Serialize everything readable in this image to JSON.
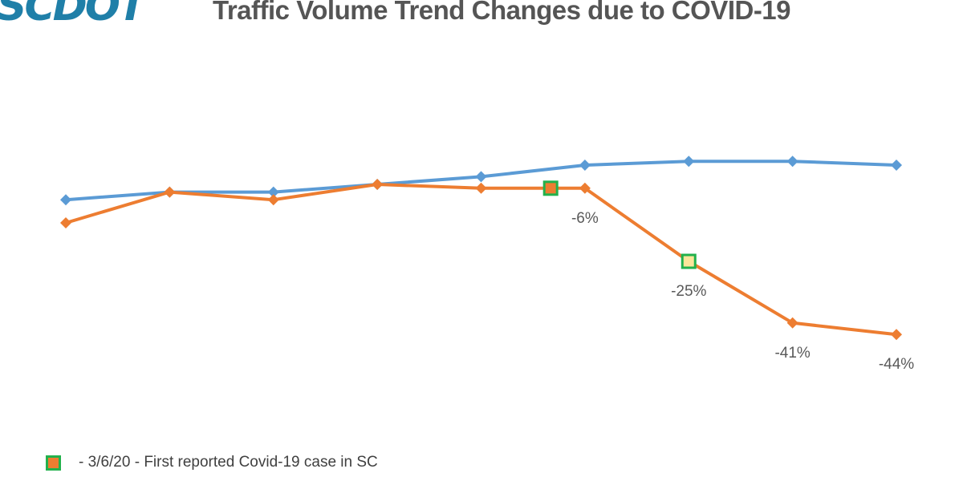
{
  "logo": "SCDOT",
  "chart_data": {
    "type": "line",
    "title": "Traffic Volume Trend Changes due to COVID-19",
    "ylim": [
      -55,
      5
    ],
    "grid": false,
    "x": [
      1,
      2,
      3,
      4,
      5,
      6,
      7,
      8,
      9
    ],
    "series": [
      {
        "color": "#5b9bd5",
        "values": [
          -9,
          -7,
          -7,
          -5,
          -3,
          0,
          1,
          1,
          0
        ]
      },
      {
        "color": "#ed7d31",
        "values": [
          -15,
          -7,
          -9,
          -5,
          -6,
          -6,
          -25,
          -41,
          -44
        ]
      }
    ],
    "data_labels": [
      {
        "index": 5,
        "text": "-6%"
      },
      {
        "index": 6,
        "text": "-25%"
      },
      {
        "index": 7,
        "text": "-41%"
      },
      {
        "index": 8,
        "text": "-44%"
      }
    ],
    "event_markers": [
      {
        "x": 5.67,
        "value": -6,
        "fill": "#ed7d31",
        "border": "#22b14c"
      },
      {
        "x": 7,
        "value": -25,
        "fill": "#fbe59a",
        "border": "#22b14c"
      }
    ],
    "legend": {
      "placement": "bottom-left",
      "text": "- 3/6/20 - First reported Covid-19 case in SC",
      "swatch_fill": "#ed7d31",
      "swatch_border": "#22b14c"
    }
  }
}
